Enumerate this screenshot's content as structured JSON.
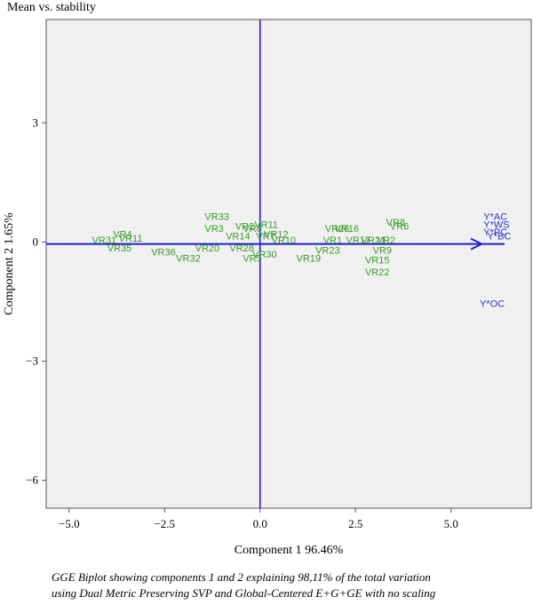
{
  "chart_data": {
    "type": "scatter",
    "title": "Mean vs. stability",
    "xlabel": "Component 1 96.46%",
    "ylabel": "Component 2 1.65%",
    "xlim": [
      -5.6,
      7.1
    ],
    "ylim": [
      -6.7,
      5.6
    ],
    "xticks": [
      {
        "v": -5.0,
        "label": "−5.0"
      },
      {
        "v": -2.5,
        "label": "−2.5"
      },
      {
        "v": 0.0,
        "label": "0.0"
      },
      {
        "v": 2.5,
        "label": "2.5"
      },
      {
        "v": 5.0,
        "label": "5.0"
      }
    ],
    "yticks": [
      {
        "v": 3,
        "label": "3"
      },
      {
        "v": 0,
        "label": "0"
      },
      {
        "v": -3,
        "label": "−3"
      },
      {
        "v": -6,
        "label": "−6"
      }
    ],
    "grid": false,
    "axis_arrow": {
      "from": [
        -5.6,
        -0.05
      ],
      "to": [
        6.4,
        -0.05
      ],
      "tip_at": [
        5.8,
        -0.05
      ]
    },
    "colors": {
      "genotype": "#3a9a2a",
      "environment": "#3232cc",
      "axis": "#1f1fcc",
      "panel": "#f0f0f0"
    },
    "genotypes": [
      {
        "label": "VR31",
        "x": -4.4,
        "y": 0.05
      },
      {
        "label": "VR4",
        "x": -3.85,
        "y": 0.2
      },
      {
        "label": "VR11",
        "x": -3.7,
        "y": 0.1
      },
      {
        "label": "VR35",
        "x": -4.0,
        "y": -0.15
      },
      {
        "label": "VR36",
        "x": -2.85,
        "y": -0.25
      },
      {
        "label": "VR32",
        "x": -2.2,
        "y": -0.4
      },
      {
        "label": "VR33",
        "x": -1.45,
        "y": 0.65
      },
      {
        "label": "VR3",
        "x": -1.45,
        "y": 0.35
      },
      {
        "label": "VR20",
        "x": -1.7,
        "y": -0.15
      },
      {
        "label": "VR2",
        "x": -0.65,
        "y": 0.4
      },
      {
        "label": "VR8",
        "x": -0.45,
        "y": 0.35
      },
      {
        "label": "VR14",
        "x": -0.9,
        "y": 0.15
      },
      {
        "label": "VR28",
        "x": -0.8,
        "y": -0.15
      },
      {
        "label": "VR5",
        "x": -0.45,
        "y": -0.4
      },
      {
        "label": "VR30",
        "x": -0.2,
        "y": -0.3
      },
      {
        "label": "VR11",
        "x": -0.15,
        "y": 0.45
      },
      {
        "label": "VR7",
        "x": -0.1,
        "y": 0.15
      },
      {
        "label": "VR12",
        "x": 0.1,
        "y": 0.2
      },
      {
        "label": "VR10",
        "x": 0.3,
        "y": 0.05
      },
      {
        "label": "VR19",
        "x": 0.95,
        "y": -0.4
      },
      {
        "label": "VR23",
        "x": 1.45,
        "y": -0.2
      },
      {
        "label": "VR26",
        "x": 1.7,
        "y": 0.35
      },
      {
        "label": "VR16",
        "x": 1.95,
        "y": 0.35
      },
      {
        "label": "VR1",
        "x": 1.65,
        "y": 0.05
      },
      {
        "label": "VR17",
        "x": 2.25,
        "y": 0.05
      },
      {
        "label": "VR21",
        "x": 2.65,
        "y": 0.05
      },
      {
        "label": "VR2",
        "x": 3.05,
        "y": 0.05
      },
      {
        "label": "VR9",
        "x": 2.95,
        "y": -0.2
      },
      {
        "label": "VR15",
        "x": 2.75,
        "y": -0.45
      },
      {
        "label": "VR22",
        "x": 2.75,
        "y": -0.75
      },
      {
        "label": "VR8",
        "x": 3.3,
        "y": 0.5
      },
      {
        "label": "VR6",
        "x": 3.4,
        "y": 0.4
      }
    ],
    "environments": [
      {
        "label": "Y*AC",
        "x": 5.85,
        "y": 0.65
      },
      {
        "label": "Y*WS",
        "x": 5.85,
        "y": 0.45
      },
      {
        "label": "Y*PC",
        "x": 5.85,
        "y": 0.25
      },
      {
        "label": "Y*BC",
        "x": 5.95,
        "y": 0.15
      },
      {
        "label": "Y*OC",
        "x": 5.75,
        "y": -1.55
      }
    ]
  },
  "caption": {
    "line1": "GGE Biplot showing components 1 and 2 explaining 98,11% of the total variation",
    "line2": "using Dual Metric Preserving SVP and Global-Centered E+G+GE with no scaling"
  }
}
